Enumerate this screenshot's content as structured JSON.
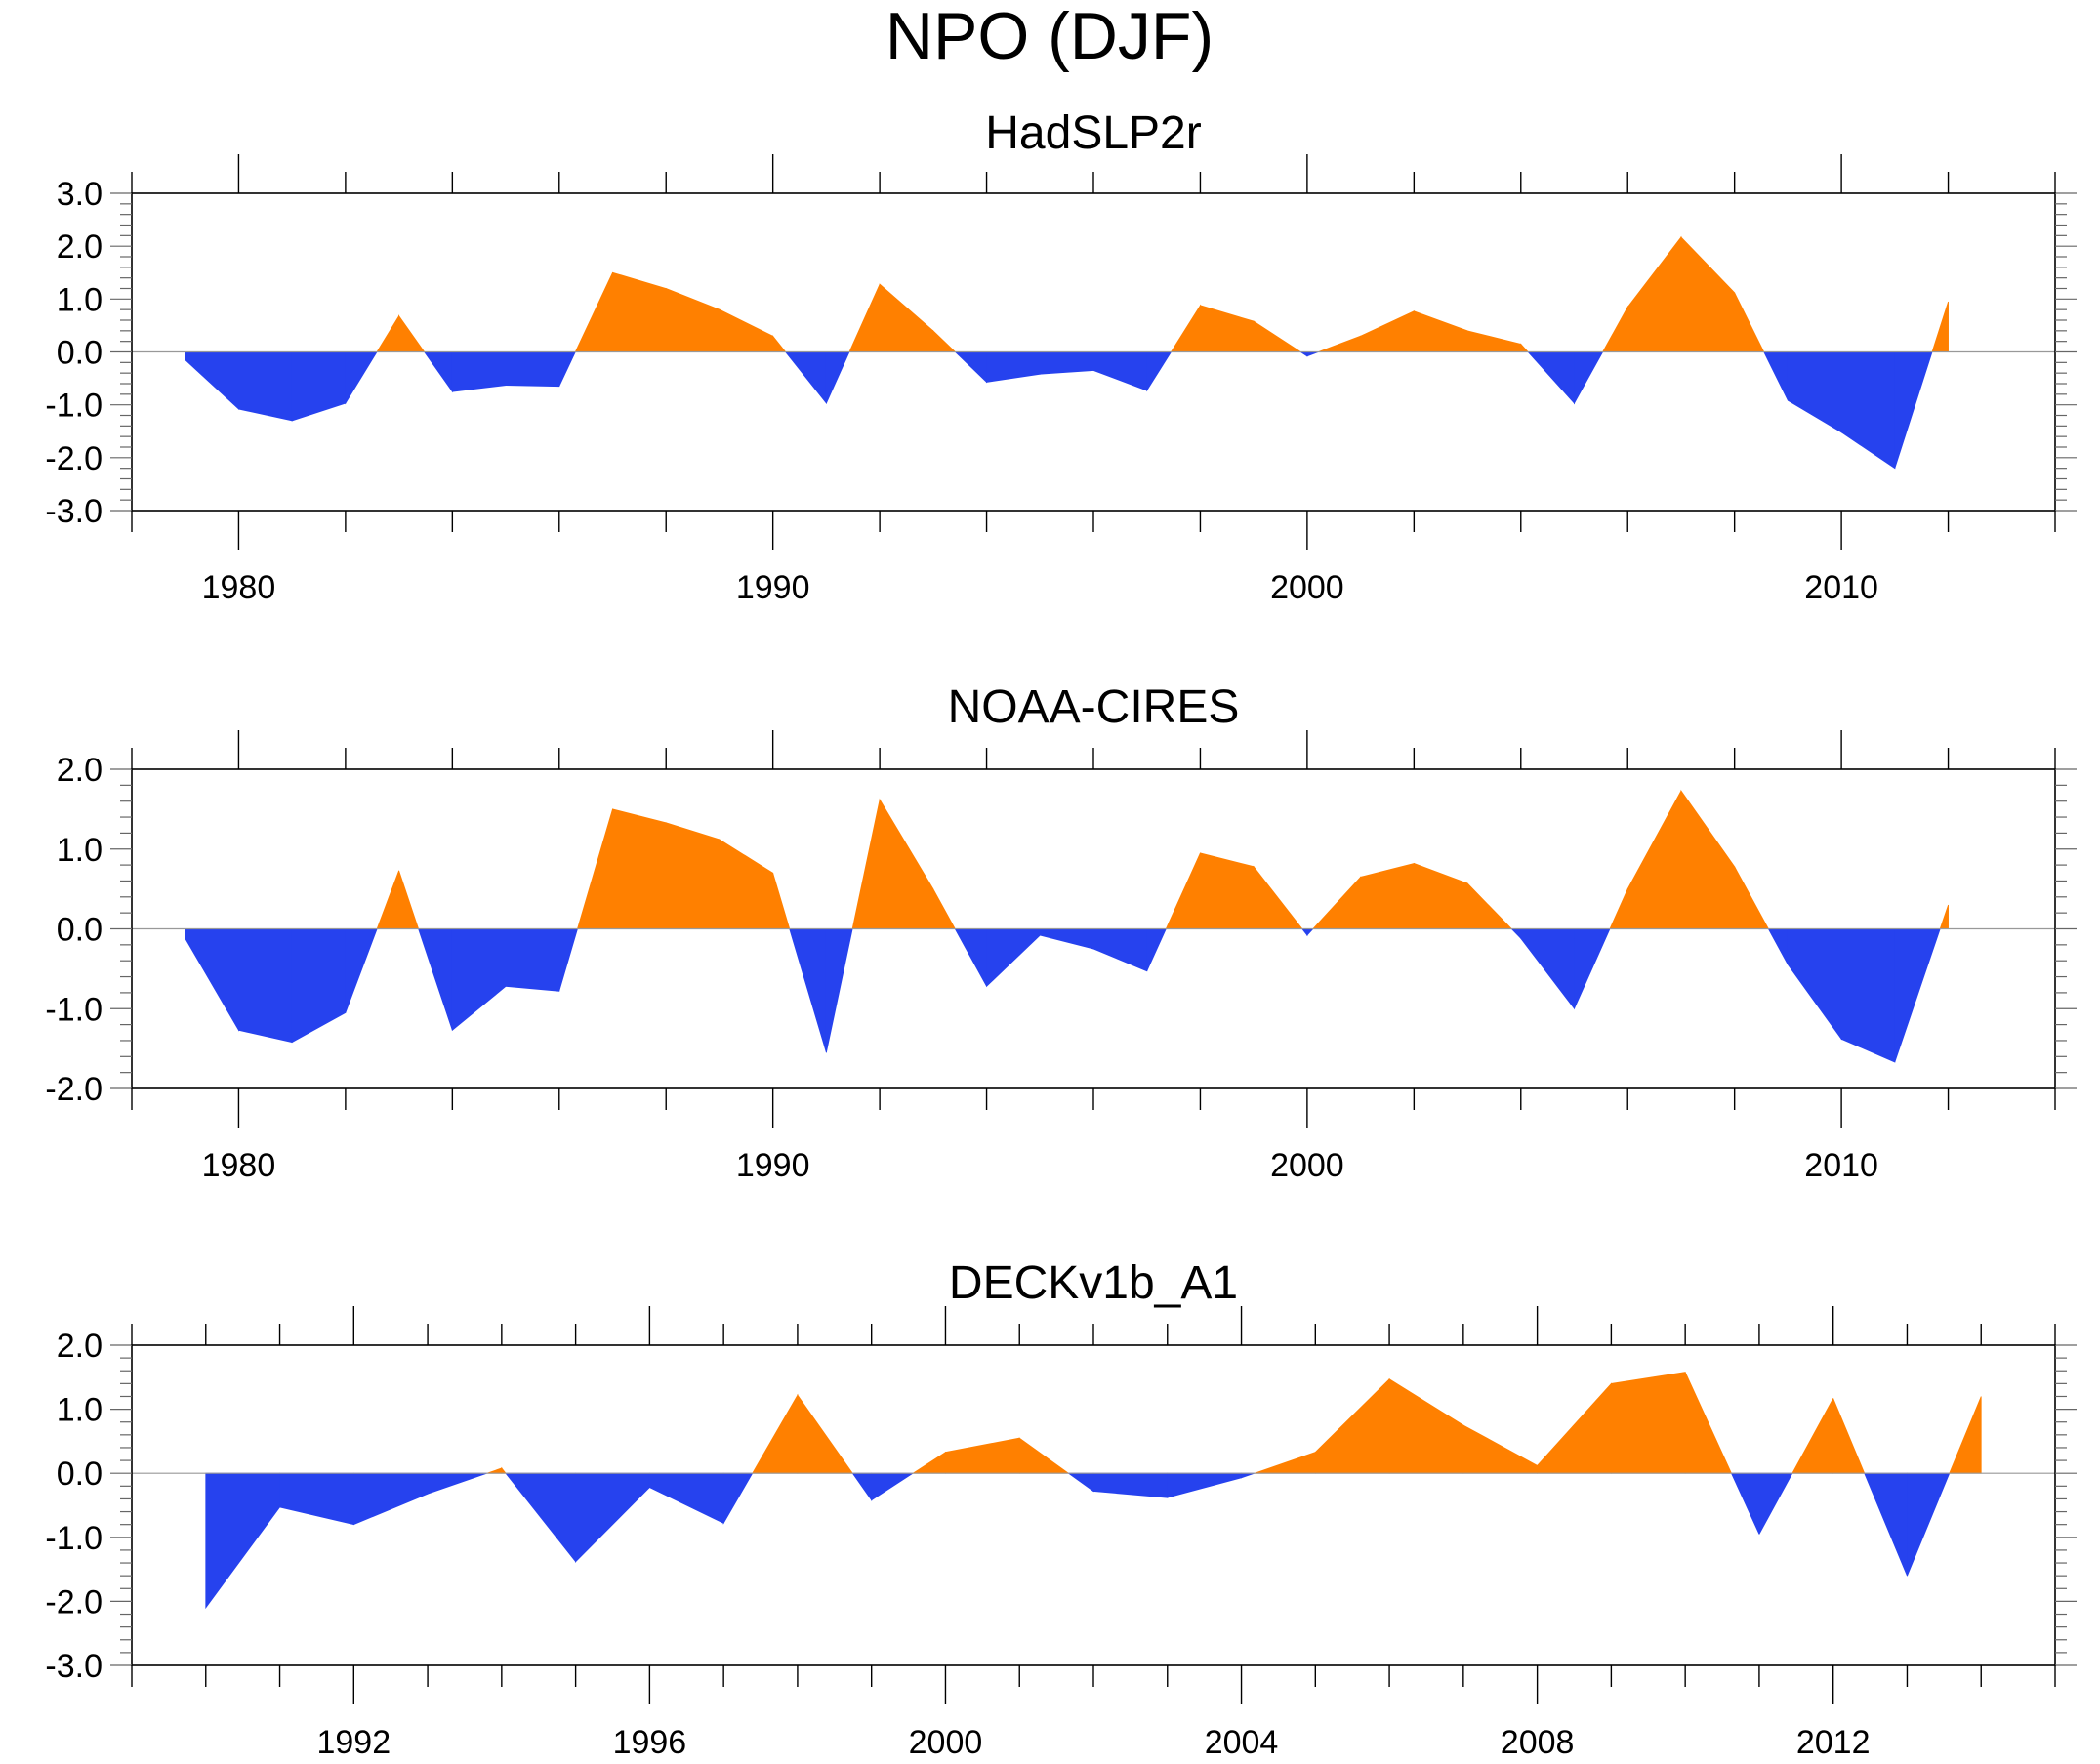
{
  "figure": {
    "title": "NPO (DJF)"
  },
  "colors": {
    "positive": "#ff8000",
    "negative": "#2642ee",
    "axis": "#000000",
    "zero_line": "#999999"
  },
  "chart_data": [
    {
      "type": "area",
      "title": "HadSLP2r",
      "xlabel": "",
      "ylabel": "",
      "xlim": [
        1978,
        2014
      ],
      "ylim": [
        -3,
        3
      ],
      "yticks": [
        -3,
        -2,
        -1,
        0,
        1,
        2,
        3
      ],
      "ytick_labels": [
        "-3.0",
        "-2.0",
        "-1.0",
        "0.0",
        "1.0",
        "2.0",
        "3.0"
      ],
      "xticks": [
        1980,
        1990,
        2000,
        2010
      ],
      "xtick_labels": [
        "1980",
        "1990",
        "2000",
        "2010"
      ],
      "x": [
        1979,
        1980,
        1981,
        1982,
        1983,
        1984,
        1985,
        1986,
        1987,
        1988,
        1989,
        1990,
        1991,
        1992,
        1993,
        1994,
        1995,
        1996,
        1997,
        1998,
        1999,
        2000,
        2001,
        2002,
        2003,
        2004,
        2005,
        2006,
        2007,
        2008,
        2009,
        2010,
        2011,
        2012
      ],
      "values": [
        -0.15,
        -1.08,
        -1.3,
        -0.97,
        0.68,
        -0.75,
        -0.63,
        -0.65,
        1.5,
        1.2,
        0.8,
        0.3,
        -0.97,
        1.28,
        0.4,
        -0.57,
        -0.42,
        -0.35,
        -0.73,
        0.88,
        0.58,
        -0.08,
        0.3,
        0.77,
        0.4,
        0.15,
        -0.97,
        0.85,
        2.17,
        1.12,
        -0.92,
        -1.52,
        -2.2,
        0.95
      ]
    },
    {
      "type": "area",
      "title": "NOAA-CIRES",
      "xlabel": "",
      "ylabel": "",
      "xlim": [
        1978,
        2014
      ],
      "ylim": [
        -2,
        2
      ],
      "yticks": [
        -2,
        -1,
        0,
        1,
        2
      ],
      "ytick_labels": [
        "-2.0",
        "-1.0",
        "0.0",
        "1.0",
        "2.0"
      ],
      "xticks": [
        1980,
        1990,
        2000,
        2010
      ],
      "xtick_labels": [
        "1980",
        "1990",
        "2000",
        "2010"
      ],
      "x": [
        1979,
        1980,
        1981,
        1982,
        1983,
        1984,
        1985,
        1986,
        1987,
        1988,
        1989,
        1990,
        1991,
        1992,
        1993,
        1994,
        1995,
        1996,
        1997,
        1998,
        1999,
        2000,
        2001,
        2002,
        2003,
        2004,
        2005,
        2006,
        2007,
        2008,
        2009,
        2010,
        2011,
        2012
      ],
      "values": [
        -0.12,
        -1.27,
        -1.42,
        -1.05,
        0.73,
        -1.27,
        -0.72,
        -0.78,
        1.5,
        1.33,
        1.12,
        0.7,
        -1.55,
        1.62,
        0.5,
        -0.72,
        -0.08,
        -0.25,
        -0.53,
        0.95,
        0.78,
        -0.08,
        0.65,
        0.82,
        0.57,
        -0.12,
        -1.0,
        0.5,
        1.73,
        0.78,
        -0.45,
        -1.38,
        -1.67,
        0.3
      ]
    },
    {
      "type": "area",
      "title": "DECKv1b_A1",
      "xlabel": "",
      "ylabel": "",
      "xlim": [
        1989,
        2015
      ],
      "ylim": [
        -3,
        2
      ],
      "yticks": [
        -3,
        -2,
        -1,
        0,
        1,
        2
      ],
      "ytick_labels": [
        "-3.0",
        "-2.0",
        "-1.0",
        "0.0",
        "1.0",
        "2.0"
      ],
      "xticks": [
        1992,
        1996,
        2000,
        2004,
        2008,
        2012
      ],
      "xtick_labels": [
        "1992",
        "1996",
        "2000",
        "2004",
        "2008",
        "2012"
      ],
      "x": [
        1990,
        1991,
        1992,
        1993,
        1994,
        1995,
        1996,
        1997,
        1998,
        1999,
        2000,
        2001,
        2002,
        2003,
        2004,
        2005,
        2006,
        2007,
        2008,
        2009,
        2010,
        2011,
        2012,
        2013,
        2014
      ],
      "values": [
        -2.1,
        -0.53,
        -0.8,
        -0.32,
        0.08,
        -1.38,
        -0.22,
        -0.78,
        1.22,
        -0.42,
        0.33,
        0.55,
        -0.28,
        -0.38,
        -0.07,
        0.33,
        1.47,
        0.75,
        0.12,
        1.4,
        1.58,
        -0.95,
        1.17,
        -1.6,
        1.2
      ]
    }
  ]
}
